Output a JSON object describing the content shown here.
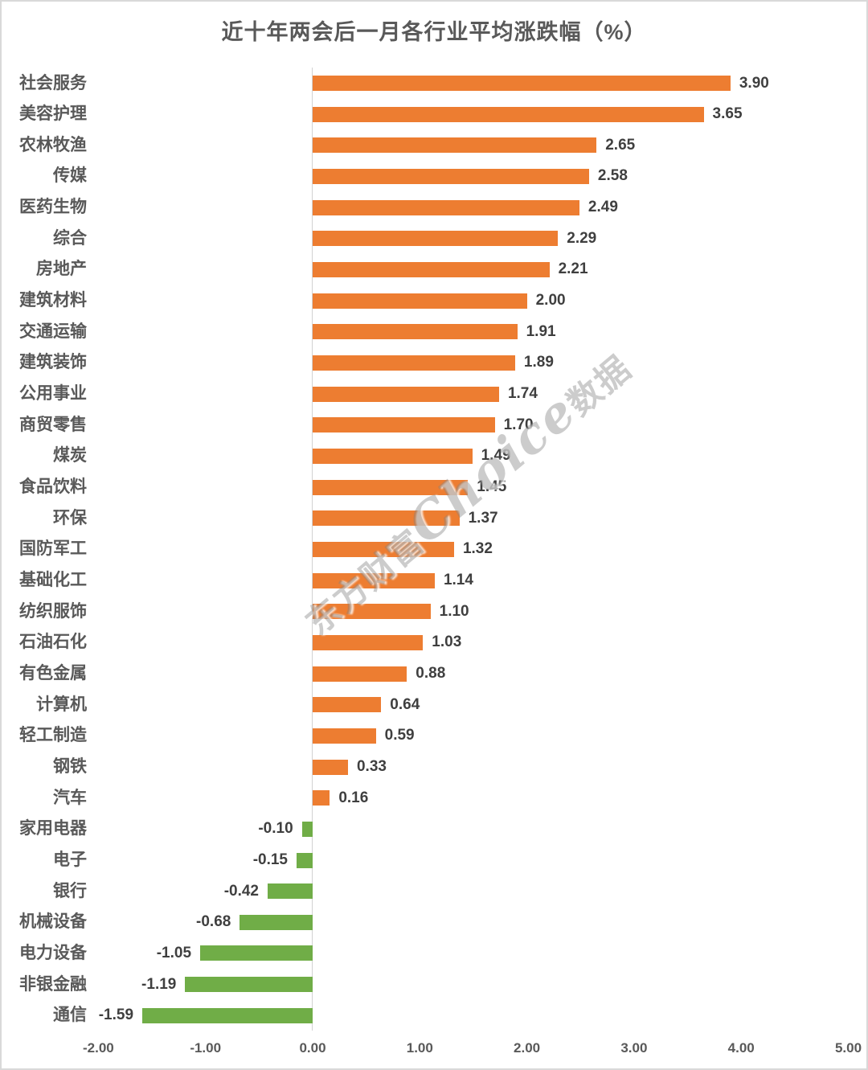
{
  "chart_data": {
    "type": "bar",
    "orientation": "horizontal",
    "title": "近十年两会后一月各行业平均涨跌幅（%）",
    "categories": [
      "社会服务",
      "美容护理",
      "农林牧渔",
      "传媒",
      "医药生物",
      "综合",
      "房地产",
      "建筑材料",
      "交通运输",
      "建筑装饰",
      "公用事业",
      "商贸零售",
      "煤炭",
      "食品饮料",
      "环保",
      "国防军工",
      "基础化工",
      "纺织服饰",
      "石油石化",
      "有色金属",
      "计算机",
      "轻工制造",
      "钢铁",
      "汽车",
      "家用电器",
      "电子",
      "银行",
      "机械设备",
      "电力设备",
      "非银金融",
      "通信"
    ],
    "values": [
      3.9,
      3.65,
      2.65,
      2.58,
      2.49,
      2.29,
      2.21,
      2.0,
      1.91,
      1.89,
      1.74,
      1.7,
      1.49,
      1.45,
      1.37,
      1.32,
      1.14,
      1.1,
      1.03,
      0.88,
      0.64,
      0.59,
      0.33,
      0.16,
      -0.1,
      -0.15,
      -0.42,
      -0.68,
      -1.05,
      -1.19,
      -1.59
    ],
    "value_label_format": "0.00",
    "xlim": [
      -2.0,
      5.0
    ],
    "x_tick_values": [
      -2,
      -1,
      0,
      1,
      2,
      3,
      4,
      5
    ],
    "x_tick_labels": [
      "-2.00",
      "-1.00",
      "0.00",
      "1.00",
      "2.00",
      "3.00",
      "4.00",
      "5.00"
    ],
    "grid": false,
    "legend": "none",
    "bar_color_positive": "#ED7D31",
    "bar_color_negative": "#70AD47",
    "watermark": {
      "prefix": "东方财富",
      "middle": "Choice",
      "suffix": "数据"
    }
  }
}
